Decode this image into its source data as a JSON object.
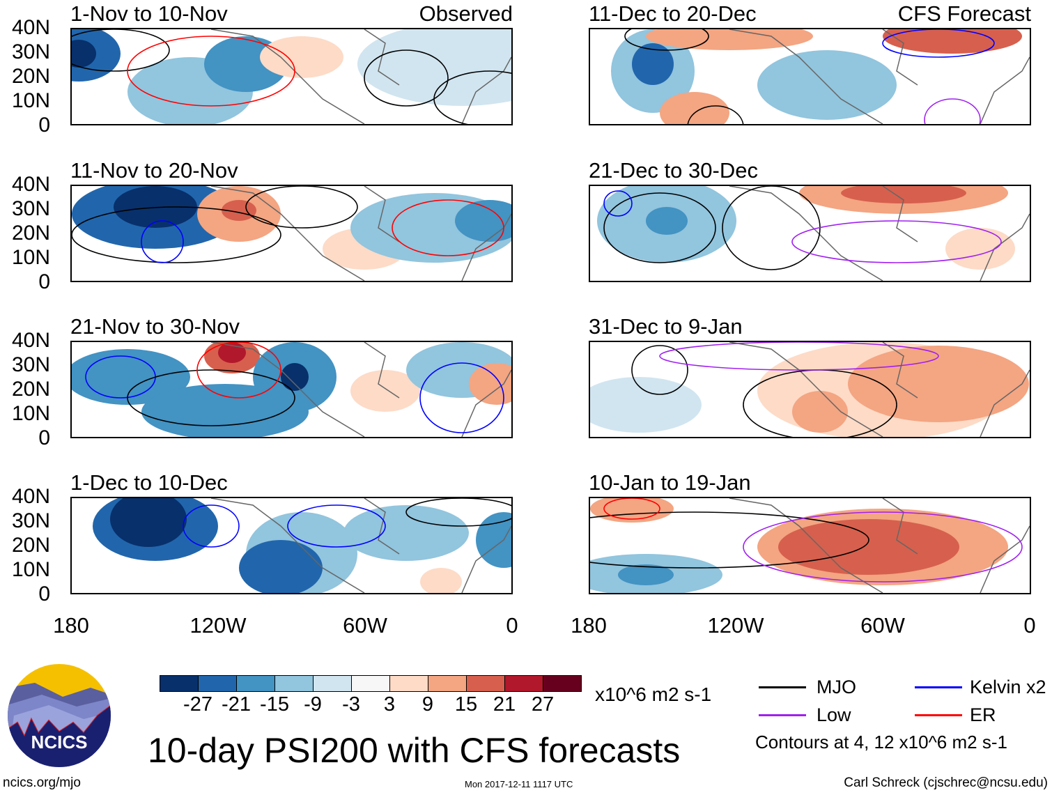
{
  "panels_left": [
    {
      "title": "1-Nov to 10-Nov",
      "tag": "Observed"
    },
    {
      "title": "11-Nov to 20-Nov",
      "tag": ""
    },
    {
      "title": "21-Nov to 30-Nov",
      "tag": ""
    },
    {
      "title": "1-Dec to 10-Dec",
      "tag": ""
    }
  ],
  "panels_right": [
    {
      "title": "11-Dec to 20-Dec",
      "tag": "CFS Forecast"
    },
    {
      "title": "21-Dec to 30-Dec",
      "tag": ""
    },
    {
      "title": "31-Dec to 9-Jan",
      "tag": ""
    },
    {
      "title": "10-Jan to 19-Jan",
      "tag": ""
    }
  ],
  "y_ticks": [
    "40N",
    "30N",
    "20N",
    "10N",
    "0"
  ],
  "x_ticks": [
    "180",
    "120W",
    "60W",
    "0"
  ],
  "colorbar": {
    "colors": [
      "#08306b",
      "#2166ac",
      "#4393c3",
      "#92c5de",
      "#d1e5f0",
      "#f7f7f7",
      "#fddbc7",
      "#f4a582",
      "#d6604d",
      "#b2182b",
      "#67001f"
    ],
    "labels": [
      "-27",
      "-21",
      "-15",
      "-9",
      "-3",
      "3",
      "9",
      "15",
      "21",
      "27"
    ],
    "units": "x10^6 m2 s-1"
  },
  "legend": {
    "items": [
      {
        "label": "MJO",
        "color": "#000000"
      },
      {
        "label": "Kelvin x2",
        "color": "#0000ff"
      },
      {
        "label": "Low",
        "color": "#a020f0"
      },
      {
        "label": "ER",
        "color": "#ff0000"
      }
    ],
    "contours": "Contours at 4, 12 x10^6 m2 s-1"
  },
  "title": "10-day PSI200 with CFS forecasts",
  "logo_text": "NCICS",
  "footer": {
    "url": "ncics.org/mjo",
    "timestamp": "Mon 2017-12-11 1117 UTC",
    "author": "Carl Schreck (cjschrec@ncsu.edu)"
  }
}
